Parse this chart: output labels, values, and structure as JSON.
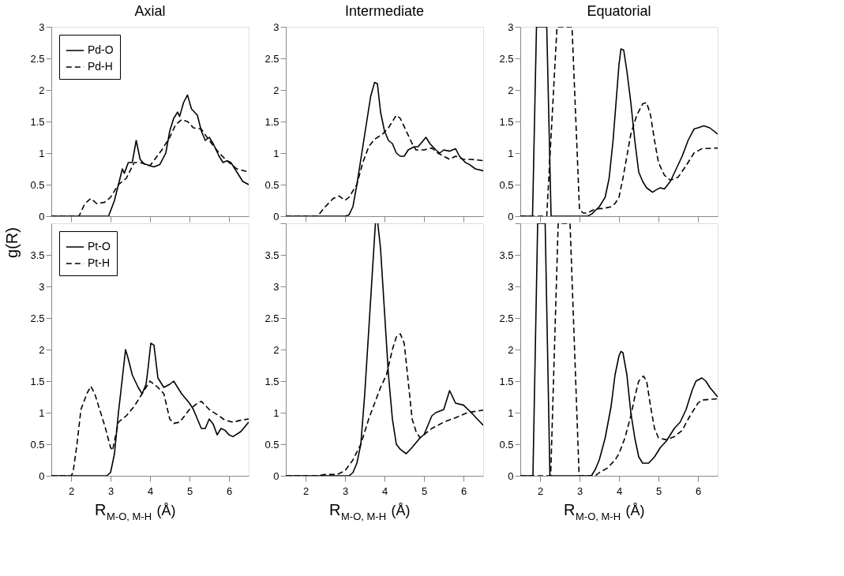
{
  "chart_data": [
    {
      "type": "line",
      "title": "Axial",
      "xlim": [
        1.5,
        6.5
      ],
      "xticks": [
        2,
        3,
        4,
        5,
        6
      ],
      "ylim": [
        0,
        3
      ],
      "yticks": [
        0,
        0.5,
        1,
        1.5,
        2,
        2.5,
        3
      ],
      "tick_labels": "y",
      "legend": "top left",
      "series": [
        {
          "name": "Pd-O",
          "color": "#000000",
          "line_style": "solid",
          "x": [
            1.5,
            2.95,
            3.1,
            3.2,
            3.3,
            3.35,
            3.45,
            3.55,
            3.65,
            3.75,
            3.85,
            4.0,
            4.1,
            4.25,
            4.4,
            4.5,
            4.6,
            4.7,
            4.75,
            4.85,
            4.95,
            5.05,
            5.2,
            5.3,
            5.4,
            5.5,
            5.6,
            5.75,
            5.85,
            5.95,
            6.05,
            6.2,
            6.35,
            6.5
          ],
          "values": [
            0,
            0,
            0.25,
            0.5,
            0.75,
            0.68,
            0.85,
            0.85,
            1.2,
            0.9,
            0.83,
            0.8,
            0.78,
            0.82,
            1.0,
            1.35,
            1.55,
            1.65,
            1.58,
            1.8,
            1.92,
            1.7,
            1.6,
            1.35,
            1.2,
            1.25,
            1.15,
            0.95,
            0.85,
            0.88,
            0.85,
            0.7,
            0.55,
            0.5
          ]
        },
        {
          "name": "Pd-H",
          "color": "#000000",
          "line_style": "dashed",
          "x": [
            1.5,
            2.2,
            2.35,
            2.5,
            2.65,
            2.85,
            3.0,
            3.2,
            3.4,
            3.6,
            3.75,
            4.0,
            4.3,
            4.5,
            4.65,
            4.8,
            4.95,
            5.1,
            5.3,
            5.5,
            5.75,
            6.0,
            6.2,
            6.5
          ],
          "values": [
            0,
            0,
            0.2,
            0.28,
            0.2,
            0.22,
            0.3,
            0.5,
            0.6,
            0.85,
            0.85,
            0.8,
            1.05,
            1.25,
            1.45,
            1.53,
            1.5,
            1.4,
            1.38,
            1.2,
            1.0,
            0.85,
            0.75,
            0.7
          ]
        }
      ]
    },
    {
      "type": "line",
      "title": "Intermediate",
      "xlim": [
        1.5,
        6.5
      ],
      "xticks": [
        2,
        3,
        4,
        5,
        6
      ],
      "ylim": [
        0,
        3
      ],
      "yticks": [
        0,
        0.5,
        1,
        1.5,
        2,
        2.5,
        3
      ],
      "tick_labels": "y",
      "series": [
        {
          "color": "#000000",
          "line_style": "solid",
          "x": [
            1.5,
            3.0,
            3.1,
            3.2,
            3.3,
            3.4,
            3.55,
            3.65,
            3.75,
            3.82,
            3.9,
            4.0,
            4.1,
            4.2,
            4.3,
            4.4,
            4.5,
            4.6,
            4.75,
            4.85,
            5.05,
            5.15,
            5.3,
            5.4,
            5.5,
            5.65,
            5.8,
            5.9,
            6.05,
            6.15,
            6.3,
            6.5
          ],
          "values": [
            0,
            0,
            0.02,
            0.15,
            0.5,
            0.9,
            1.5,
            1.9,
            2.12,
            2.1,
            1.65,
            1.35,
            1.2,
            1.15,
            1.0,
            0.95,
            0.95,
            1.05,
            1.1,
            1.1,
            1.25,
            1.15,
            1.05,
            1.0,
            1.05,
            1.03,
            1.07,
            0.95,
            0.85,
            0.82,
            0.75,
            0.72
          ]
        },
        {
          "color": "#000000",
          "line_style": "dashed",
          "x": [
            1.5,
            2.3,
            2.5,
            2.7,
            2.85,
            3.0,
            3.1,
            3.3,
            3.45,
            3.6,
            3.75,
            3.95,
            4.1,
            4.3,
            4.4,
            4.55,
            4.7,
            4.8,
            5.0,
            5.2,
            5.35,
            5.5,
            5.65,
            5.8,
            6.0,
            6.2,
            6.5
          ],
          "values": [
            0,
            0,
            0.15,
            0.28,
            0.32,
            0.25,
            0.3,
            0.5,
            0.85,
            1.1,
            1.22,
            1.3,
            1.4,
            1.6,
            1.55,
            1.35,
            1.15,
            1.05,
            1.05,
            1.08,
            1.0,
            0.95,
            0.9,
            0.95,
            0.9,
            0.9,
            0.88
          ]
        }
      ]
    },
    {
      "type": "line",
      "title": "Equatorial",
      "xlim": [
        1.5,
        6.5
      ],
      "xticks": [
        2,
        3,
        4,
        5,
        6
      ],
      "ylim": [
        0,
        3
      ],
      "yticks": [
        0,
        0.5,
        1,
        1.5,
        2,
        2.5,
        3
      ],
      "tick_labels": "y",
      "series": [
        {
          "color": "#000000",
          "line_style": "solid",
          "x": [
            1.5,
            1.81,
            1.91,
            2.17,
            2.28,
            3.2,
            3.3,
            3.5,
            3.65,
            3.75,
            3.85,
            3.95,
            4.0,
            4.05,
            4.12,
            4.2,
            4.3,
            4.4,
            4.5,
            4.6,
            4.7,
            4.85,
            4.95,
            5.05,
            5.15,
            5.3,
            5.45,
            5.6,
            5.75,
            5.9,
            6.0,
            6.15,
            6.3,
            6.5
          ],
          "values": [
            0,
            0,
            3,
            3,
            0,
            0,
            0.03,
            0.15,
            0.3,
            0.6,
            1.2,
            2.0,
            2.4,
            2.65,
            2.63,
            2.3,
            1.8,
            1.2,
            0.7,
            0.55,
            0.45,
            0.38,
            0.42,
            0.45,
            0.43,
            0.55,
            0.75,
            0.95,
            1.2,
            1.38,
            1.4,
            1.43,
            1.4,
            1.3
          ]
        },
        {
          "color": "#000000",
          "line_style": "dashed",
          "x": [
            1.5,
            2.17,
            2.43,
            2.81,
            3.0,
            3.1,
            3.2,
            3.35,
            3.5,
            3.6,
            3.8,
            3.9,
            4.0,
            4.1,
            4.2,
            4.3,
            4.45,
            4.6,
            4.7,
            4.8,
            4.9,
            5.0,
            5.15,
            5.3,
            5.5,
            5.7,
            5.9,
            6.1,
            6.5
          ],
          "values": [
            0,
            0,
            3,
            3,
            0.1,
            0.05,
            0.05,
            0.1,
            0.12,
            0.12,
            0.15,
            0.2,
            0.3,
            0.6,
            0.95,
            1.3,
            1.6,
            1.78,
            1.8,
            1.6,
            1.2,
            0.85,
            0.65,
            0.57,
            0.62,
            0.8,
            1.0,
            1.07,
            1.08
          ]
        }
      ]
    },
    {
      "type": "line",
      "xlabel": "R$_{M-O, M-H}$ (Å)",
      "ylabel": "g(R)",
      "xlim": [
        1.5,
        6.5
      ],
      "xticks": [
        2,
        3,
        4,
        5,
        6
      ],
      "ylim": [
        0,
        4
      ],
      "yticks": [
        0,
        0.5,
        1,
        1.5,
        2,
        2.5,
        3,
        3.5
      ],
      "legend": "top left",
      "series": [
        {
          "name": "Pt-O",
          "color": "#000000",
          "line_style": "solid",
          "x": [
            1.5,
            2.9,
            3.0,
            3.1,
            3.2,
            3.3,
            3.38,
            3.45,
            3.55,
            3.7,
            3.8,
            3.9,
            3.95,
            4.02,
            4.1,
            4.2,
            4.35,
            4.5,
            4.6,
            4.8,
            5.0,
            5.1,
            5.2,
            5.3,
            5.4,
            5.5,
            5.6,
            5.7,
            5.8,
            5.9,
            6.0,
            6.1,
            6.3,
            6.5
          ],
          "values": [
            0,
            0,
            0.05,
            0.35,
            1.0,
            1.55,
            2.0,
            1.85,
            1.6,
            1.4,
            1.3,
            1.45,
            1.7,
            2.1,
            2.07,
            1.55,
            1.4,
            1.45,
            1.5,
            1.3,
            1.15,
            1.05,
            0.9,
            0.75,
            0.75,
            0.9,
            0.82,
            0.65,
            0.75,
            0.72,
            0.65,
            0.62,
            0.7,
            0.85
          ]
        },
        {
          "name": "Pt-H",
          "color": "#000000",
          "line_style": "dashed",
          "x": [
            1.5,
            2.0,
            2.05,
            2.15,
            2.25,
            2.4,
            2.5,
            2.6,
            2.75,
            2.85,
            3.0,
            3.05,
            3.2,
            3.4,
            3.6,
            3.8,
            4.0,
            4.2,
            4.35,
            4.5,
            4.6,
            4.75,
            5.0,
            5.2,
            5.3,
            5.5,
            5.75,
            5.9,
            6.1,
            6.3,
            6.5
          ],
          "values": [
            0,
            0,
            0.05,
            0.5,
            1.05,
            1.3,
            1.42,
            1.3,
            1.0,
            0.8,
            0.45,
            0.4,
            0.85,
            0.95,
            1.1,
            1.3,
            1.5,
            1.4,
            1.3,
            0.9,
            0.83,
            0.85,
            1.05,
            1.15,
            1.18,
            1.05,
            0.95,
            0.88,
            0.85,
            0.88,
            0.9
          ]
        }
      ]
    },
    {
      "type": "line",
      "xlabel": "R$_{M-O, M-H}$ (Å)",
      "xlim": [
        1.5,
        6.5
      ],
      "xticks": [
        2,
        3,
        4,
        5,
        6
      ],
      "ylim": [
        0,
        4
      ],
      "yticks": [
        0,
        0.5,
        1,
        1.5,
        2,
        2.5,
        3,
        3.5,
        {
          "value": 4,
          "label": null
        }
      ],
      "series": [
        {
          "color": "#000000",
          "line_style": "solid",
          "x": [
            1.5,
            3.1,
            3.2,
            3.3,
            3.4,
            3.5,
            3.6,
            3.7,
            3.77,
            3.8,
            3.83,
            3.9,
            4.0,
            4.1,
            4.2,
            4.3,
            4.4,
            4.55,
            4.7,
            4.9,
            5.0,
            5.1,
            5.2,
            5.3,
            5.5,
            5.65,
            5.8,
            6.0,
            6.2,
            6.35,
            6.5
          ],
          "values": [
            0,
            0,
            0.05,
            0.2,
            0.5,
            1.3,
            2.3,
            3.3,
            4.0,
            null,
            4.0,
            3.6,
            2.6,
            1.6,
            0.9,
            0.5,
            0.42,
            0.35,
            0.45,
            0.6,
            0.65,
            0.8,
            0.95,
            1.0,
            1.05,
            1.35,
            1.15,
            1.12,
            1.0,
            0.9,
            0.8
          ]
        },
        {
          "color": "#000000",
          "line_style": "dashed",
          "x": [
            1.5,
            2.3,
            2.5,
            2.8,
            3.0,
            3.2,
            3.4,
            3.6,
            3.75,
            3.9,
            4.05,
            4.2,
            4.3,
            4.4,
            4.5,
            4.6,
            4.7,
            4.8,
            4.9,
            5.0,
            5.2,
            5.5,
            5.8,
            6.1,
            6.3,
            6.5
          ],
          "values": [
            0,
            0,
            0.02,
            0.02,
            0.08,
            0.25,
            0.5,
            0.9,
            1.15,
            1.4,
            1.6,
            2.0,
            2.2,
            2.25,
            2.1,
            1.5,
            0.9,
            0.7,
            0.6,
            0.65,
            0.75,
            0.85,
            0.92,
            1.0,
            1.02,
            1.04
          ]
        }
      ]
    },
    {
      "type": "line",
      "xlabel": "R$_{M-O, M-H}$ (Å)",
      "xlim": [
        1.5,
        6.5
      ],
      "xticks": [
        2,
        3,
        4,
        5,
        6
      ],
      "ylim": [
        0,
        4
      ],
      "yticks": [
        0,
        0.5,
        1,
        1.5,
        2,
        2.5,
        3,
        3.5,
        {
          "value": 4,
          "label": null
        }
      ],
      "series": [
        {
          "color": "#000000",
          "line_style": "solid",
          "x": [
            1.5,
            1.82,
            1.94,
            2.13,
            2.25,
            3.3,
            3.4,
            3.5,
            3.65,
            3.8,
            3.9,
            4.0,
            4.05,
            4.1,
            4.2,
            4.3,
            4.4,
            4.5,
            4.6,
            4.75,
            4.9,
            5.05,
            5.2,
            5.4,
            5.55,
            5.7,
            5.85,
            5.95,
            6.1,
            6.2,
            6.3,
            6.5
          ],
          "values": [
            0,
            0,
            4,
            4,
            0,
            0,
            0.1,
            0.25,
            0.6,
            1.1,
            1.6,
            1.9,
            1.97,
            1.95,
            1.6,
            1.0,
            0.6,
            0.3,
            0.2,
            0.2,
            0.3,
            0.45,
            0.55,
            0.75,
            0.85,
            1.05,
            1.35,
            1.5,
            1.55,
            1.5,
            1.4,
            1.25
          ]
        },
        {
          "color": "#000000",
          "line_style": "dashed",
          "x": [
            1.5,
            2.27,
            2.46,
            2.76,
            2.99,
            3.4,
            3.5,
            3.7,
            3.9,
            4.0,
            4.15,
            4.3,
            4.4,
            4.5,
            4.62,
            4.7,
            4.8,
            4.9,
            5.0,
            5.2,
            5.4,
            5.6,
            5.8,
            6.0,
            6.1,
            6.5
          ],
          "values": [
            0,
            0,
            4,
            4,
            0,
            0,
            0.05,
            0.12,
            0.25,
            0.35,
            0.6,
            0.95,
            1.25,
            1.5,
            1.58,
            1.5,
            1.1,
            0.75,
            0.6,
            0.57,
            0.62,
            0.72,
            0.95,
            1.15,
            1.2,
            1.22
          ]
        }
      ]
    }
  ]
}
